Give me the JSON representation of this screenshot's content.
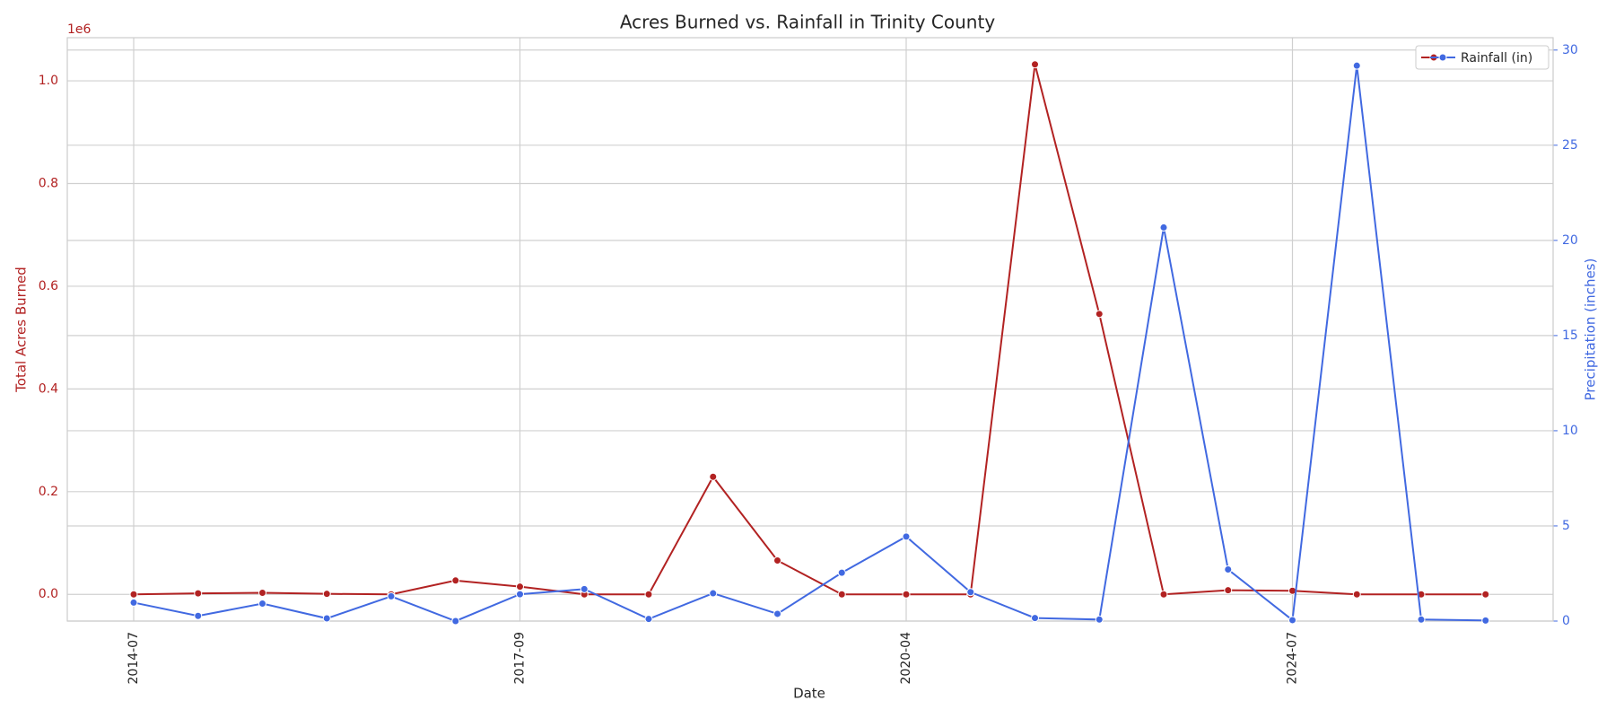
{
  "chart_data": {
    "type": "line",
    "title": "Acres Burned vs. Rainfall in Trinity County",
    "xlabel": "Date",
    "ylabel": "Total Acres Burned",
    "y2label": "Precipitation (inches)",
    "y_offset_label": "1e6",
    "categories": [
      "2014-07",
      null,
      null,
      null,
      null,
      null,
      "2017-09",
      null,
      null,
      null,
      null,
      null,
      "2020-04",
      null,
      null,
      null,
      null,
      null,
      "2024-07",
      null,
      null,
      null
    ],
    "series": [
      {
        "name": "Acres Burned",
        "color": "#b22222",
        "axis": "y",
        "values": [
          0,
          2000,
          3000,
          1000,
          0,
          27000,
          15000,
          0,
          0,
          229000,
          66000,
          0,
          0,
          0,
          1032000,
          546000,
          0,
          8000,
          7000,
          0,
          0,
          0
        ]
      },
      {
        "name": "Rainfall (in)",
        "color": "#4169e1",
        "axis": "y2",
        "values": [
          0.97,
          0.27,
          0.92,
          0.14,
          1.3,
          0.0,
          1.41,
          1.68,
          0.11,
          1.46,
          0.38,
          2.54,
          4.44,
          1.52,
          0.16,
          0.08,
          20.68,
          2.71,
          0.05,
          29.18,
          0.08,
          0.03
        ]
      }
    ],
    "ylim": [
      -52000,
      1084000
    ],
    "yticks": [
      {
        "value": 0,
        "label": "0.0"
      },
      {
        "value": 200000,
        "label": "0.2"
      },
      {
        "value": 400000,
        "label": "0.4"
      },
      {
        "value": 600000,
        "label": "0.6"
      },
      {
        "value": 800000,
        "label": "0.8"
      },
      {
        "value": 1000000,
        "label": "1.0"
      }
    ],
    "y2lim": [
      0,
      30.65
    ],
    "y2ticks": [
      0,
      5,
      10,
      15,
      20,
      25,
      30
    ],
    "grid": true,
    "legend": "upper right"
  }
}
